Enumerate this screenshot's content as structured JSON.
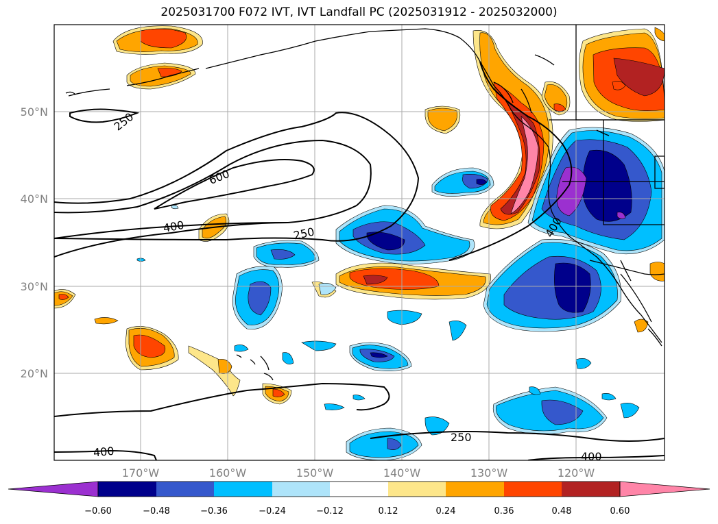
{
  "title": "2025031700 F072 IVT, IVT Landfall PC (2025031912 - 2025032000)",
  "lat_labels": [
    "50°N",
    "40°N",
    "30°N",
    "20°N"
  ],
  "lon_labels": [
    "170°W",
    "160°W",
    "150°W",
    "140°W",
    "130°W",
    "120°W"
  ],
  "contour_labels": [
    "250",
    "600",
    "400",
    "250",
    "250",
    "400",
    "400",
    "400"
  ],
  "colorbar": {
    "colors": [
      "#9b30d0",
      "#00008b",
      "#3558cc",
      "#00bfff",
      "#aee4fa",
      "#ffffff",
      "#fde68a",
      "#ffa500",
      "#ff4500",
      "#b22222",
      "#ff85a8"
    ],
    "tick_labels": [
      "−0.60",
      "−0.48",
      "−0.36",
      "−0.24",
      "−0.12",
      "0.12",
      "0.24",
      "0.36",
      "0.48",
      "0.60"
    ]
  }
}
